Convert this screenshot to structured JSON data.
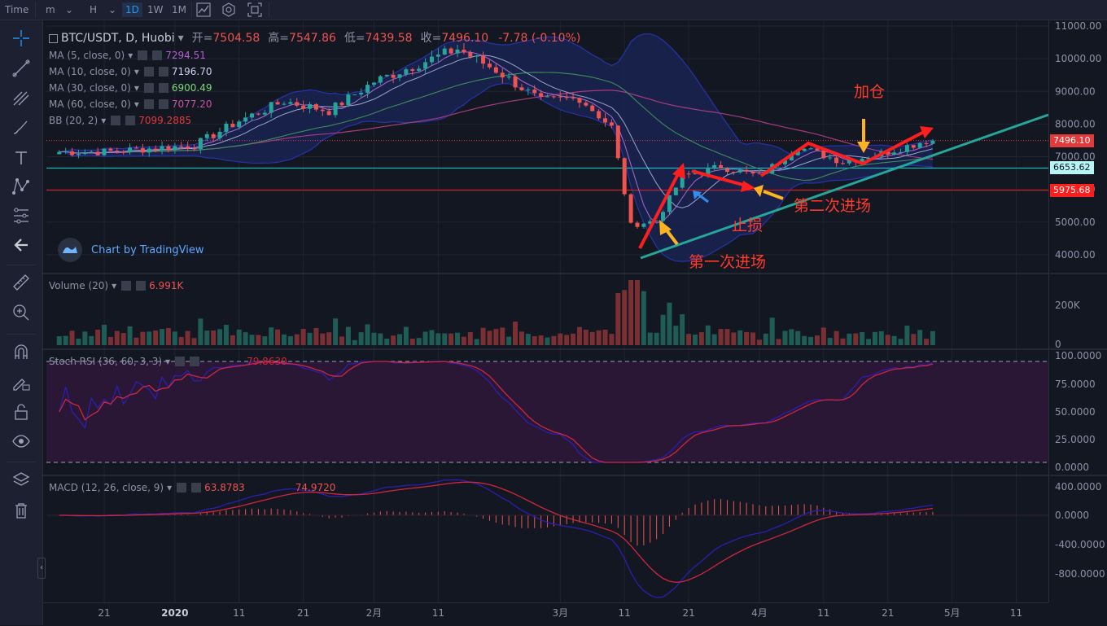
{
  "toolbar": {
    "time_label": "Time",
    "minute_label": "m",
    "hour_label": "H",
    "intervals": [
      "1D",
      "1W",
      "1M"
    ],
    "active_interval": "1D"
  },
  "chart_header": {
    "symbol": "BTC/USDT, D, Huobi",
    "open_label": "开=",
    "open": "7504.58",
    "high_label": "高=",
    "high": "7547.86",
    "low_label": "低=",
    "low": "7439.58",
    "close_label": "收=",
    "close": "7496.10",
    "change": "-7.78 (-0.10%)"
  },
  "indicators": [
    {
      "label": "MA (5, close, 0)",
      "value": "7294.51",
      "color": "#b45fd0"
    },
    {
      "label": "MA (10, close, 0)",
      "value": "7196.70",
      "color": "#c9d2f0"
    },
    {
      "label": "MA (30, close, 0)",
      "value": "6900.49",
      "color": "#7dd87d"
    },
    {
      "label": "MA (60, close, 0)",
      "value": "7077.20",
      "color": "#d04fa6"
    },
    {
      "label": "BB (20, 2)",
      "value": "7099.2885",
      "color": "#e23a3a"
    }
  ],
  "watermark": "Chart by TradingView",
  "annotations": {
    "first_entry": "第一次进场",
    "second_entry": "第二次进场",
    "stop_loss": "止损",
    "add_position": "加仓"
  },
  "price_tags": [
    {
      "value": "7496.10",
      "color": "#e23a3a"
    },
    {
      "value": "6653.62",
      "color": "#00c8c8"
    },
    {
      "value": "5975.68",
      "color": "#ff1e1e"
    }
  ],
  "panes": {
    "volume": {
      "label": "Volume (20)",
      "value": "6.991K",
      "ticks": [
        "200K",
        "0"
      ]
    },
    "stoch": {
      "label": "Stoch RSI (36, 60, 3, 3)",
      "value": "79.8630",
      "ticks": [
        "100.0000",
        "75.0000",
        "50.0000",
        "25.0000",
        "0.0000"
      ]
    },
    "macd": {
      "label": "MACD (12, 26, close, 9)",
      "value1": "63.8783",
      "value2": "74.9720",
      "ticks": [
        "400.0000",
        "0.0000",
        "-400.0000",
        "-800.0000"
      ]
    }
  },
  "chart_data": {
    "type": "line",
    "title": "BTC/USDT, D, Huobi",
    "y_ticks": [
      11000,
      10000,
      9000,
      8000,
      7000,
      6000,
      5000,
      4000
    ],
    "y_tick_labels": [
      "11000.00",
      "10000.00",
      "9000.00",
      "8000.00",
      "7000.00",
      "6000.00",
      "5000.00",
      "4000.00"
    ],
    "ylim": [
      3450,
      11150
    ],
    "x_tick_labels": [
      "21",
      "2020",
      "11",
      "21",
      "2月",
      "11",
      "3月",
      "11",
      "21",
      "4月",
      "11",
      "21",
      "5月",
      "11"
    ],
    "horizontal_levels": [
      7496.1,
      6653.62,
      5975.68
    ],
    "series": [
      {
        "name": "BTC/USDT",
        "x": [
          "2019-12-21",
          "2019-12-28",
          "2020-01-04",
          "2020-01-11",
          "2020-01-18",
          "2020-01-25",
          "2020-02-01",
          "2020-02-08",
          "2020-02-14",
          "2020-02-20",
          "2020-02-27",
          "2020-03-04",
          "2020-03-09",
          "2020-03-12",
          "2020-03-16",
          "2020-03-20",
          "2020-03-26",
          "2020-04-01",
          "2020-04-07",
          "2020-04-14",
          "2020-04-20",
          "2020-04-27"
        ],
        "values": [
          7150,
          7250,
          7350,
          8100,
          8700,
          8400,
          9300,
          9850,
          10300,
          9650,
          8700,
          8800,
          7900,
          4900,
          5050,
          6400,
          6700,
          6400,
          7300,
          6850,
          7100,
          7496
        ]
      }
    ]
  }
}
